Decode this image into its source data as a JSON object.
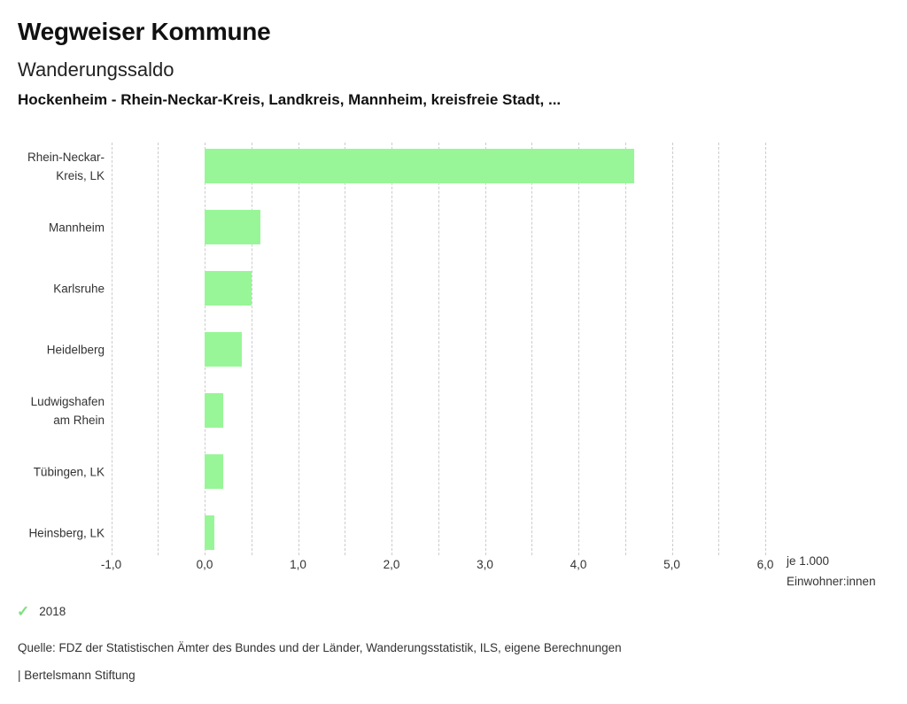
{
  "header": {
    "title": "Wegweiser Kommune",
    "subtitle": "Wanderungssaldo",
    "context": "Hockenheim - Rhein-Neckar-Kreis, Landkreis, Mannheim, kreisfreie Stadt, ..."
  },
  "chart_data": {
    "type": "bar",
    "orientation": "horizontal",
    "categories": [
      "Rhein-Neckar-\nKreis, LK",
      "Mannheim",
      "Karlsruhe",
      "Heidelberg",
      "Ludwigshafen\nam Rhein",
      "Tübingen, LK",
      "Heinsberg, LK"
    ],
    "values": [
      4.6,
      0.6,
      0.5,
      0.4,
      0.2,
      0.2,
      0.1
    ],
    "series_name": "2018",
    "title": "Wanderungssaldo",
    "xlabel": "je 1.000 Einwohner:innen",
    "ylabel": "",
    "xlim": [
      -1.0,
      6.0
    ],
    "gridline_step": 0.5,
    "grid": true,
    "x_ticks": [
      "-1,0",
      "0,0",
      "1,0",
      "2,0",
      "3,0",
      "4,0",
      "5,0",
      "6,0"
    ],
    "x_tick_values": [
      -1,
      0,
      1,
      2,
      3,
      4,
      5,
      6
    ],
    "unit_label": "je 1.000\nEinwohner:innen",
    "bar_color": "#98f698",
    "legend_position": "bottom-left"
  },
  "legend": {
    "check_icon": "✓",
    "check_color": "#7fe07f",
    "year": "2018"
  },
  "footer": {
    "source": "Quelle: FDZ der Statistischen Ämter des Bundes und der Länder, Wanderungsstatistik, ILS, eigene Berechnungen",
    "branding": "| Bertelsmann Stiftung"
  },
  "colors": {
    "bar": "#98f698",
    "grid": "#cccccc",
    "text": "#333333",
    "title": "#111111",
    "background": "#ffffff"
  }
}
